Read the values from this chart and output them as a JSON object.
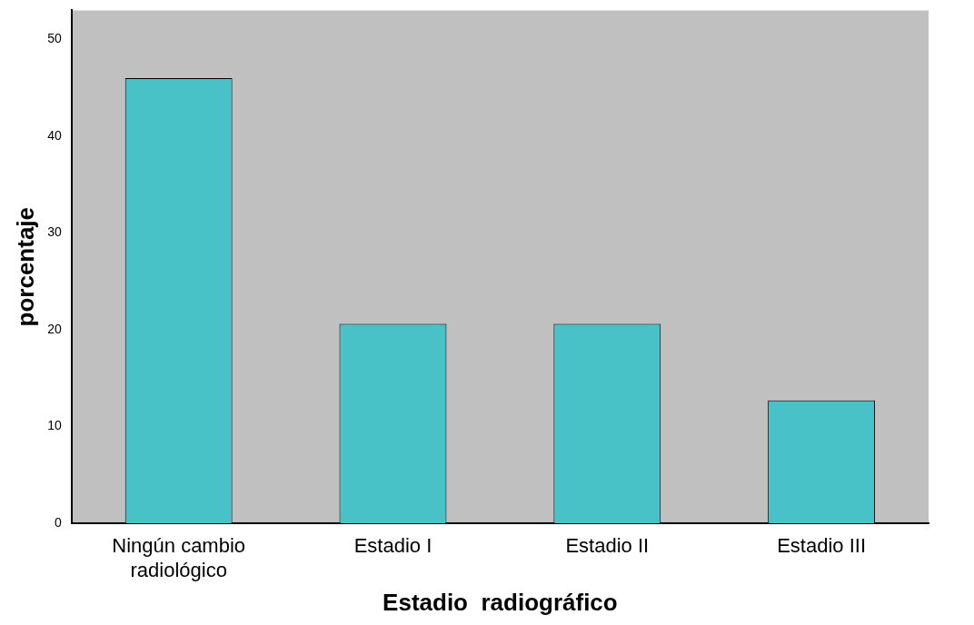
{
  "chart_data": {
    "type": "bar",
    "xlabel": "Estadio  radiográfico",
    "ylabel": "porcentaje",
    "categories": [
      "Ningún cambio radiológico",
      "Estadio I",
      "Estadio II",
      "Estadio III"
    ],
    "values": [
      46.0,
      20.6,
      20.6,
      12.7
    ],
    "color": "#48c2c6",
    "ylim": [
      0,
      53
    ],
    "yticks": [
      0,
      10,
      20,
      30,
      40,
      50
    ],
    "grid": false,
    "legend": false
  }
}
